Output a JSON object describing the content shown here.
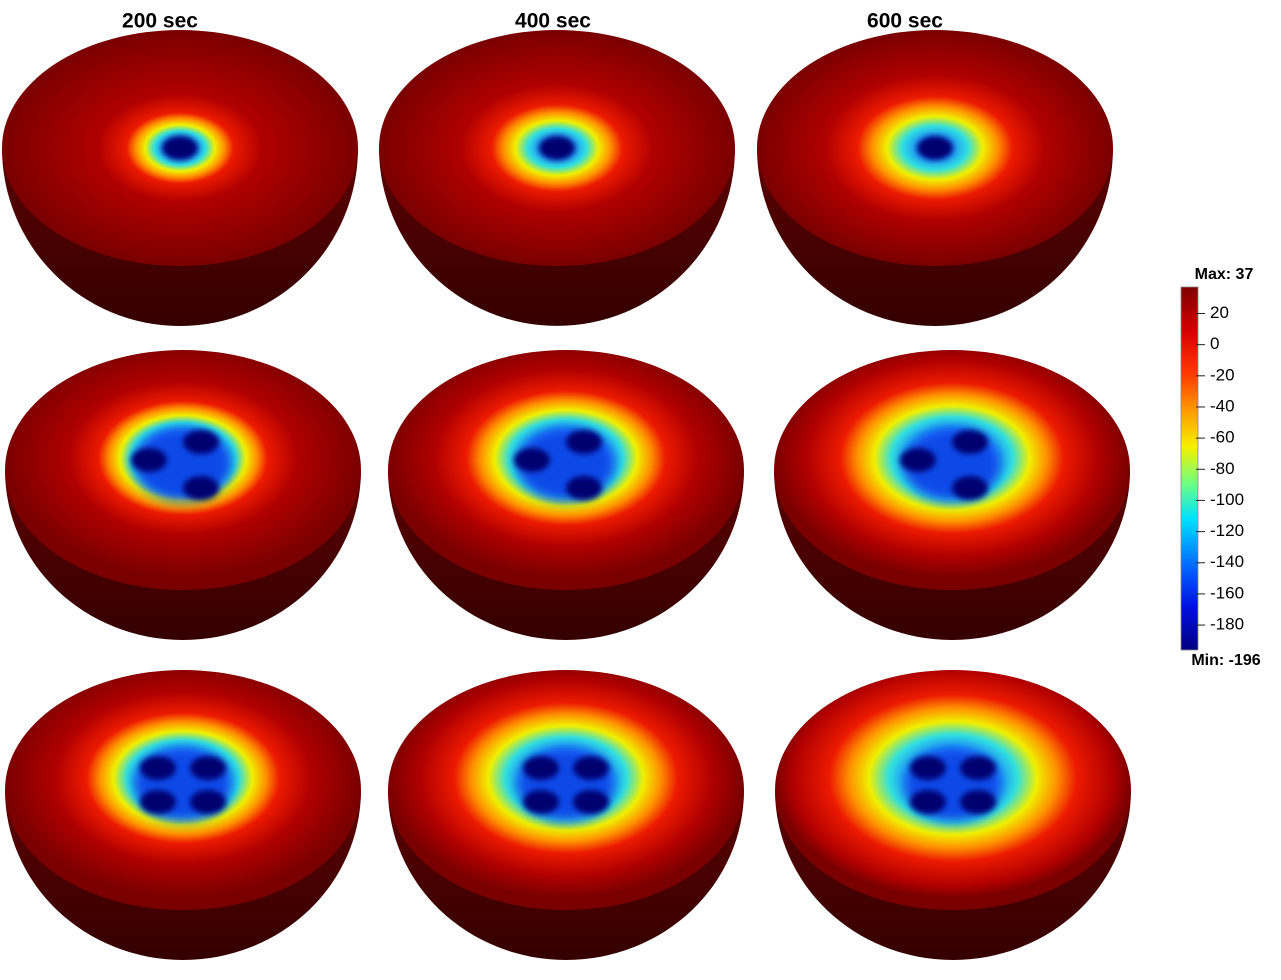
{
  "columns": [
    "200 sec",
    "400 sec",
    "600 sec"
  ],
  "colorbar": {
    "max_label": "Max: 37",
    "min_label": "Min: -196",
    "max": 37,
    "min": -196,
    "ticks": [
      20,
      0,
      -20,
      -40,
      -60,
      -80,
      -100,
      -120,
      -140,
      -160,
      -180
    ]
  }
}
